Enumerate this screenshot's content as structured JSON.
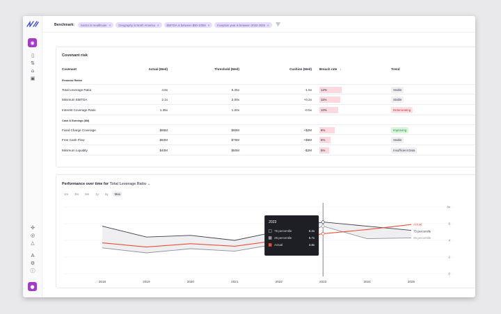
{
  "benchmark": {
    "label": "Benchmark:",
    "chips": [
      "Sector is Healthcare",
      "Geography is North America",
      "EBITDA is between $50-100M",
      "Inception year is between 2023-2025"
    ],
    "remove_icon": "×"
  },
  "covenant": {
    "title": "Covenant risk",
    "headers": {
      "covenant": "Covenant",
      "actual": "Actual (Med)",
      "threshold": "Threshold (Med)",
      "cushion": "Cushion (Med)",
      "breach": "Breach rate",
      "sort_icon": "↓",
      "trend": "Trend"
    },
    "sections": {
      "financial": "Financial Ratios",
      "cash": "Cash & Earnings ($M)"
    },
    "rows": [
      {
        "name": "Total Leverage Ratio",
        "actual": "4.8x",
        "threshold": "5.25x",
        "cushion": "-1.5x",
        "breach": "12%",
        "breach_pct": 12,
        "trend": "Stable",
        "trend_type": "neutral"
      },
      {
        "name": "Minimum EBITDA",
        "actual": "2.1x",
        "threshold": "2.00x",
        "cushion": "+0.2x",
        "breach": "11%",
        "breach_pct": 11,
        "trend": "Stable",
        "trend_type": "neutral"
      },
      {
        "name": "Interest Coverage Ratio",
        "actual": "1.35x",
        "threshold": "1.20x",
        "cushion": "-0.5x",
        "breach": "10%",
        "breach_pct": 10,
        "trend": "Deteriorating",
        "trend_type": "bad"
      },
      {
        "name": "Fixed Charge Coverage",
        "actual": "$85M",
        "threshold": "$90M",
        "cushion": "+$2M",
        "breach": "8%",
        "breach_pct": 8,
        "trend": "Improving",
        "trend_type": "good"
      },
      {
        "name": "Free Cash Flow",
        "actual": "$60M",
        "threshold": "$75M",
        "cushion": "+$5M",
        "breach": "6%",
        "breach_pct": 6,
        "trend": "Stable",
        "trend_type": "neutral"
      },
      {
        "name": "Minimum Liquidity",
        "actual": "$40M",
        "threshold": "$50M",
        "cushion": "-$2M",
        "breach": "5%",
        "breach_pct": 5,
        "trend": "Insufficient Data",
        "trend_type": "neutral"
      }
    ]
  },
  "performance": {
    "title_prefix": "Performance over time for",
    "metric": "Total Leverage Ratio",
    "dropdown_icon": "⌄",
    "ranges": [
      "1m",
      "3m",
      "6m",
      "1y",
      "5y",
      "Max"
    ],
    "active_range": "Max"
  },
  "chart_data": {
    "type": "line",
    "x": [
      "2018",
      "2019",
      "2020",
      "2021",
      "2022",
      "2023",
      "2024",
      "2025"
    ],
    "y_ticks": [
      "8x",
      "6",
      "4",
      "2",
      "0"
    ],
    "ylim": [
      0,
      8
    ],
    "series": [
      {
        "name": "75 percentile",
        "values": [
          5.7,
          4.4,
          4.6,
          4.0,
          5.1,
          6.2,
          5.7,
          5.2
        ],
        "color": "#3a3d48"
      },
      {
        "name": "25 percentile",
        "values": [
          3.1,
          2.5,
          3.0,
          2.7,
          3.6,
          5.7,
          4.2,
          4.3
        ],
        "color": "#8e919c"
      },
      {
        "name": "Actual",
        "values": [
          3.7,
          3.2,
          3.6,
          3.3,
          4.0,
          4.8,
          5.3,
          5.9
        ],
        "color": "#e8503a"
      }
    ],
    "hover_index": 5,
    "tooltip": {
      "title": "2023",
      "items": [
        {
          "label": "75 percentile",
          "value": "6.2x"
        },
        {
          "label": "25 percentile",
          "value": "5.7x"
        },
        {
          "label": "Actual",
          "value": "4.8x"
        }
      ]
    }
  },
  "colors": {
    "accent": "#a23cc5",
    "chip_bg": "#e7dcfb",
    "breach_bg": "#fbd9de"
  }
}
